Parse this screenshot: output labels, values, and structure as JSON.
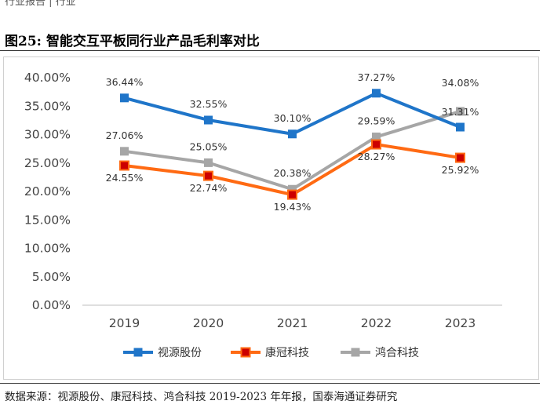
{
  "header_fragment": "行业报告  | 行业",
  "figure": {
    "number": "图25:",
    "title": "智能交互平板同行业产品毛利率对比"
  },
  "source_note": "数据来源：视源股份、康冠科技、鸿合科技 2019-2023 年年报，国泰海通证券研究",
  "colors": {
    "视源股份": "#1f75c9",
    "康冠科技": "#ff6a13",
    "鸿合科技": "#a6a6a6",
    "kangguan_marker_fill": "#cc0000"
  },
  "chart_data": {
    "type": "line",
    "title": "",
    "xlabel": "",
    "ylabel": "",
    "categories": [
      "2019",
      "2020",
      "2021",
      "2022",
      "2023"
    ],
    "ylim": [
      0,
      40
    ],
    "yticks": [
      0,
      5,
      10,
      15,
      20,
      25,
      30,
      35,
      40
    ],
    "ytick_labels": [
      "0.00%",
      "5.00%",
      "10.00%",
      "15.00%",
      "20.00%",
      "25.00%",
      "30.00%",
      "35.00%",
      "40.00%"
    ],
    "grid": false,
    "legend_position": "bottom",
    "series": [
      {
        "name": "视源股份",
        "values": [
          36.44,
          32.55,
          30.1,
          37.27,
          31.31
        ],
        "labels": [
          "36.44%",
          "32.55%",
          "30.10%",
          "37.27%",
          "31.31%"
        ]
      },
      {
        "name": "康冠科技",
        "values": [
          24.55,
          22.74,
          19.43,
          28.27,
          25.92
        ],
        "labels": [
          "24.55%",
          "22.74%",
          "19.43%",
          "28.27%",
          "25.92%"
        ]
      },
      {
        "name": "鸿合科技",
        "values": [
          27.06,
          25.05,
          20.38,
          29.59,
          34.08
        ],
        "labels": [
          "27.06%",
          "25.05%",
          "20.38%",
          "29.59%",
          "34.08%"
        ]
      }
    ]
  }
}
